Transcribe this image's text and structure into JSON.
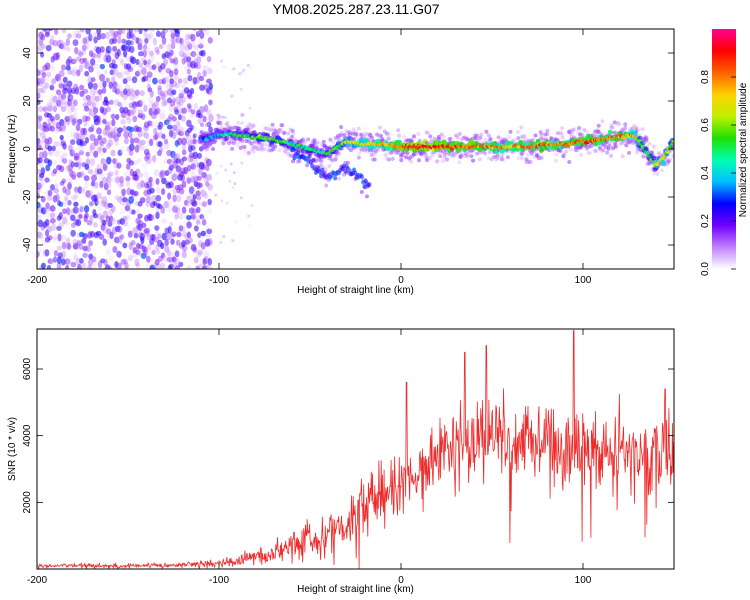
{
  "title": "YM08.2025.287.23.11.G07",
  "chart_data": [
    {
      "type": "heatmap",
      "xlabel": "Height of straight line (km)",
      "ylabel": "Frequency (Hz)",
      "xlim": [
        -200,
        150
      ],
      "ylim": [
        -50,
        50
      ],
      "xticks": [
        "-200",
        "-100",
        "0",
        "100"
      ],
      "yticks": [
        "-40",
        "-20",
        "0",
        "20",
        "40"
      ],
      "colorbar": {
        "label": "Normalized spectral amplitude",
        "range": [
          0,
          1
        ],
        "ticks": [
          "0.0",
          "0.2",
          "0.4",
          "0.6",
          "0.8"
        ],
        "colors": [
          "#ffffff",
          "#c080ff",
          "#7000ff",
          "#0000ff",
          "#00c0ff",
          "#00ffb0",
          "#20e000",
          "#c0f000",
          "#ffd000",
          "#ff6000",
          "#ff0000",
          "#ff0090"
        ]
      },
      "ridge": {
        "x_km": [
          -110,
          -100,
          -90,
          -80,
          -70,
          -60,
          -50,
          -40,
          -30,
          -20,
          -10,
          0,
          10,
          20,
          30,
          40,
          50,
          60,
          70,
          80,
          90,
          100,
          110,
          120,
          128,
          132,
          136,
          140,
          144,
          150
        ],
        "freq_hz": [
          4,
          6,
          6,
          5,
          4,
          2,
          0,
          -2,
          3,
          2,
          2,
          1,
          1,
          1,
          1,
          1,
          1,
          1,
          1,
          2,
          2,
          3,
          4,
          5,
          6,
          2,
          -2,
          -7,
          -4,
          3
        ],
        "amplitude": [
          0.3,
          0.4,
          0.5,
          0.55,
          0.55,
          0.5,
          0.5,
          0.5,
          0.65,
          0.7,
          0.75,
          0.85,
          0.9,
          0.9,
          0.85,
          0.85,
          0.8,
          0.75,
          0.8,
          0.8,
          0.8,
          0.85,
          0.8,
          0.8,
          0.75,
          0.6,
          0.5,
          0.6,
          0.7,
          0.6
        ]
      },
      "branch": {
        "x_km": [
          -60,
          -50,
          -45,
          -40,
          -30,
          -20,
          -17
        ],
        "freq_hz": [
          -1,
          -5,
          -10,
          -12,
          -8,
          -14,
          -16
        ]
      },
      "noise_region_km": [
        -200,
        -105
      ]
    },
    {
      "type": "line",
      "xlabel": "Height of straight line (km)",
      "ylabel": "SNR (10 * v/v)",
      "xlim": [
        -200,
        150
      ],
      "ylim": [
        0,
        7200
      ],
      "xticks": [
        "-200",
        "-100",
        "0",
        "100"
      ],
      "yticks": [
        "2000",
        "4000",
        "6000"
      ],
      "color": "#ee2a2a",
      "envelope": {
        "x_km": [
          -200,
          -150,
          -120,
          -100,
          -90,
          -80,
          -70,
          -60,
          -50,
          -40,
          -30,
          -25,
          -20,
          -15,
          -10,
          -5,
          0,
          3,
          5,
          10,
          15,
          20,
          25,
          30,
          40,
          50,
          60,
          70,
          80,
          90,
          100,
          110,
          120,
          130,
          140,
          150
        ],
        "snr_mean": [
          100,
          100,
          120,
          180,
          260,
          360,
          520,
          700,
          880,
          1050,
          1350,
          1700,
          2000,
          2200,
          2300,
          2450,
          2600,
          2800,
          2400,
          2900,
          3300,
          3500,
          3700,
          3800,
          3900,
          4000,
          3900,
          3800,
          3700,
          3650,
          3600,
          3550,
          3500,
          3450,
          3400,
          3350
        ],
        "snr_spread": [
          60,
          60,
          80,
          120,
          180,
          250,
          350,
          450,
          550,
          650,
          800,
          950,
          1000,
          1000,
          950,
          900,
          900,
          900,
          900,
          900,
          950,
          1000,
          1050,
          1100,
          1150,
          1200,
          1200,
          1200,
          1200,
          1200,
          1200,
          1150,
          1100,
          1100,
          1100,
          1050
        ]
      },
      "peaks": [
        {
          "x_km": 3,
          "snr": 5600
        },
        {
          "x_km": 35,
          "snr": 6500
        },
        {
          "x_km": 47,
          "snr": 6700
        },
        {
          "x_km": 95,
          "snr": 7150
        },
        {
          "x_km": 145,
          "snr": 5400
        }
      ]
    }
  ]
}
